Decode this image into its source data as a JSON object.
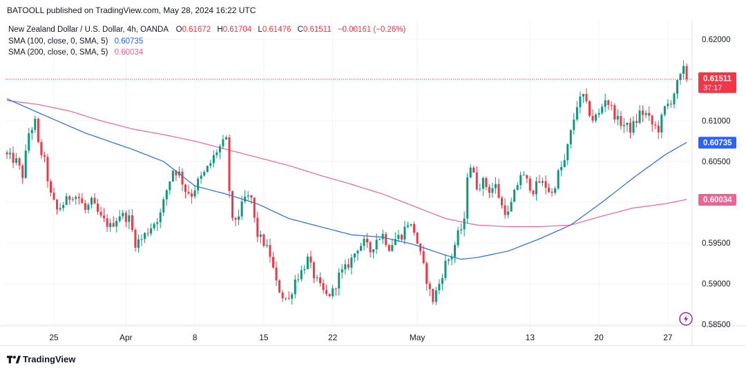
{
  "header": {
    "published": "BATOOLL published on TradingView.com, May 28, 2024 16:22 UTC"
  },
  "legend": {
    "title": "New Zealand Dollar / U.S. Dollar, 4h, OANDA",
    "o_label": "O",
    "o_value": "0.61672",
    "h_label": "H",
    "h_value": "0.61704",
    "l_label": "L",
    "l_value": "0.61476",
    "c_label": "C",
    "c_value": "0.61511",
    "change": "−0.00161 (−0.26%)",
    "sma100_label": "SMA (100, close, 0, SMA, 5)",
    "sma100_value": "0.60735",
    "sma200_label": "SMA (200, close, 0, SMA, 5)",
    "sma200_value": "0.60034"
  },
  "footer": {
    "brand": "TradingView"
  },
  "colors": {
    "up": "#089981",
    "down": "#f23645",
    "sma100": "#2962ff",
    "sma200": "#f06292",
    "grid": "#f0f3fa",
    "axis_text": "#131722"
  },
  "chart_data": {
    "type": "candlestick",
    "symbol": "NZDUSD",
    "timeframe": "4h",
    "ylim": [
      0.5845,
      0.6225
    ],
    "y_ticks": [
      0.585,
      0.59,
      0.595,
      0.6,
      0.605,
      0.61,
      0.615,
      0.62
    ],
    "y_tick_labels": [
      "0.58500",
      "0.59000",
      "0.59500",
      "0.60000",
      "0.60500",
      "0.61000",
      "",
      "0.62000"
    ],
    "x_ticks": [
      {
        "label": "25",
        "bar": 15
      },
      {
        "label": "Apr",
        "bar": 38
      },
      {
        "label": "8",
        "bar": 60
      },
      {
        "label": "15",
        "bar": 82
      },
      {
        "label": "22",
        "bar": 104
      },
      {
        "label": "May",
        "bar": 131
      },
      {
        "label": "13",
        "bar": 167
      },
      {
        "label": "20",
        "bar": 189
      },
      {
        "label": "27",
        "bar": 211
      }
    ],
    "bar_count": 218,
    "last_price": 0.61511,
    "last_price_label": "0.61511",
    "countdown": "37:17",
    "sma100_last_label": "0.60735",
    "sma200_last_label": "0.60034",
    "close_keypoints": [
      [
        0,
        0.6057
      ],
      [
        3,
        0.605
      ],
      [
        5,
        0.6033
      ],
      [
        7,
        0.6085
      ],
      [
        9,
        0.6098
      ],
      [
        10,
        0.607
      ],
      [
        12,
        0.605
      ],
      [
        14,
        0.6008
      ],
      [
        16,
        0.599
      ],
      [
        18,
        0.5998
      ],
      [
        21,
        0.601
      ],
      [
        23,
        0.6005
      ],
      [
        25,
        0.599
      ],
      [
        27,
        0.6
      ],
      [
        30,
        0.598
      ],
      [
        33,
        0.597
      ],
      [
        36,
        0.5985
      ],
      [
        39,
        0.598
      ],
      [
        41,
        0.595
      ],
      [
        43,
        0.5955
      ],
      [
        45,
        0.5965
      ],
      [
        47,
        0.5975
      ],
      [
        49,
        0.5985
      ],
      [
        51,
        0.6015
      ],
      [
        53,
        0.604
      ],
      [
        55,
        0.6035
      ],
      [
        57,
        0.6015
      ],
      [
        59,
        0.601
      ],
      [
        61,
        0.6025
      ],
      [
        63,
        0.6035
      ],
      [
        65,
        0.6048
      ],
      [
        67,
        0.6063
      ],
      [
        69,
        0.6072
      ],
      [
        70,
        0.6075
      ],
      [
        71,
        0.6015
      ],
      [
        72,
        0.5975
      ],
      [
        74,
        0.5985
      ],
      [
        76,
        0.6005
      ],
      [
        78,
        0.6005
      ],
      [
        79,
        0.5978
      ],
      [
        80,
        0.596
      ],
      [
        82,
        0.595
      ],
      [
        84,
        0.5935
      ],
      [
        86,
        0.59
      ],
      [
        88,
        0.5885
      ],
      [
        90,
        0.588
      ],
      [
        92,
        0.5905
      ],
      [
        94,
        0.5915
      ],
      [
        96,
        0.593
      ],
      [
        98,
        0.591
      ],
      [
        100,
        0.5895
      ],
      [
        102,
        0.5885
      ],
      [
        104,
        0.589
      ],
      [
        106,
        0.591
      ],
      [
        108,
        0.5918
      ],
      [
        110,
        0.593
      ],
      [
        112,
        0.5945
      ],
      [
        114,
        0.595
      ],
      [
        116,
        0.594
      ],
      [
        118,
        0.5955
      ],
      [
        120,
        0.596
      ],
      [
        122,
        0.5945
      ],
      [
        124,
        0.5955
      ],
      [
        126,
        0.596
      ],
      [
        128,
        0.5975
      ],
      [
        130,
        0.5965
      ],
      [
        131,
        0.595
      ],
      [
        133,
        0.592
      ],
      [
        135,
        0.589
      ],
      [
        136,
        0.588
      ],
      [
        138,
        0.59
      ],
      [
        140,
        0.5925
      ],
      [
        142,
        0.5935
      ],
      [
        144,
        0.596
      ],
      [
        146,
        0.5975
      ],
      [
        147,
        0.6035
      ],
      [
        148,
        0.6045
      ],
      [
        150,
        0.602
      ],
      [
        152,
        0.6025
      ],
      [
        154,
        0.6015
      ],
      [
        156,
        0.602
      ],
      [
        158,
        0.5995
      ],
      [
        160,
        0.5985
      ],
      [
        162,
        0.601
      ],
      [
        164,
        0.6035
      ],
      [
        166,
        0.6025
      ],
      [
        168,
        0.6015
      ],
      [
        170,
        0.6025
      ],
      [
        172,
        0.602
      ],
      [
        174,
        0.601
      ],
      [
        176,
        0.6035
      ],
      [
        178,
        0.605
      ],
      [
        180,
        0.6085
      ],
      [
        182,
        0.612
      ],
      [
        184,
        0.613
      ],
      [
        185,
        0.6118
      ],
      [
        187,
        0.6102
      ],
      [
        189,
        0.6108
      ],
      [
        191,
        0.6128
      ],
      [
        193,
        0.6115
      ],
      [
        195,
        0.61
      ],
      [
        197,
        0.6095
      ],
      [
        199,
        0.609
      ],
      [
        201,
        0.61
      ],
      [
        202,
        0.611
      ],
      [
        204,
        0.6108
      ],
      [
        206,
        0.6095
      ],
      [
        208,
        0.609
      ],
      [
        210,
        0.6115
      ],
      [
        212,
        0.6125
      ],
      [
        214,
        0.6145
      ],
      [
        216,
        0.6162
      ],
      [
        217,
        0.6151
      ]
    ],
    "sma100_keypoints": [
      [
        0,
        0.6127
      ],
      [
        10,
        0.611
      ],
      [
        25,
        0.6085
      ],
      [
        40,
        0.6065
      ],
      [
        50,
        0.605
      ],
      [
        60,
        0.602
      ],
      [
        70,
        0.601
      ],
      [
        80,
        0.5998
      ],
      [
        90,
        0.598
      ],
      [
        100,
        0.597
      ],
      [
        110,
        0.596
      ],
      [
        120,
        0.5957
      ],
      [
        130,
        0.5948
      ],
      [
        140,
        0.5935
      ],
      [
        145,
        0.593
      ],
      [
        150,
        0.5932
      ],
      [
        160,
        0.594
      ],
      [
        170,
        0.5955
      ],
      [
        180,
        0.5972
      ],
      [
        190,
        0.6
      ],
      [
        200,
        0.603
      ],
      [
        210,
        0.6058
      ],
      [
        217,
        0.60735
      ]
    ],
    "sma200_keypoints": [
      [
        0,
        0.6125
      ],
      [
        10,
        0.612
      ],
      [
        20,
        0.6112
      ],
      [
        30,
        0.61
      ],
      [
        40,
        0.609
      ],
      [
        50,
        0.6083
      ],
      [
        60,
        0.6075
      ],
      [
        70,
        0.6065
      ],
      [
        80,
        0.6055
      ],
      [
        90,
        0.6045
      ],
      [
        100,
        0.6033
      ],
      [
        110,
        0.6022
      ],
      [
        120,
        0.601
      ],
      [
        130,
        0.5995
      ],
      [
        140,
        0.598
      ],
      [
        150,
        0.5972
      ],
      [
        160,
        0.597
      ],
      [
        170,
        0.597
      ],
      [
        180,
        0.5972
      ],
      [
        190,
        0.5983
      ],
      [
        200,
        0.5993
      ],
      [
        210,
        0.5998
      ],
      [
        217,
        0.60034
      ]
    ]
  }
}
